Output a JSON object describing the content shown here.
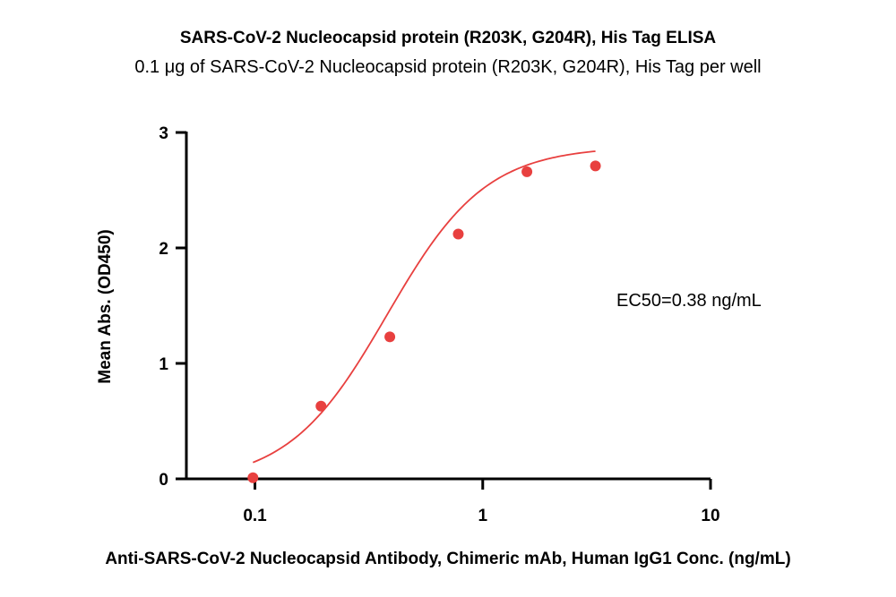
{
  "chart_data": {
    "type": "scatter",
    "title": "SARS-CoV-2 Nucleocapsid protein (R203K, G204R), His Tag ELISA",
    "subtitle": "0.1 μg of SARS-CoV-2 Nucleocapsid protein (R203K, G204R), His Tag per well",
    "xlabel": "Anti-SARS-CoV-2 Nucleocapsid Antibody, Chimeric mAb, Human IgG1 Conc. (ng/mL)",
    "ylabel": "Mean Abs. (OD450)",
    "x_scale": "log",
    "xlim": [
      0.05,
      10
    ],
    "ylim": [
      0,
      3
    ],
    "x_ticks": [
      0.1,
      1,
      10
    ],
    "x_tick_labels": [
      "0.1",
      "1",
      "10"
    ],
    "y_ticks": [
      0,
      1,
      2,
      3
    ],
    "y_tick_labels": [
      "0",
      "1",
      "2",
      "3"
    ],
    "grid": false,
    "colors": {
      "series": "#e8403f",
      "axis": "#000000"
    },
    "series": [
      {
        "points": [
          {
            "x": 0.098,
            "y": 0.01
          },
          {
            "x": 0.195,
            "y": 0.63
          },
          {
            "x": 0.391,
            "y": 1.23
          },
          {
            "x": 0.781,
            "y": 2.12
          },
          {
            "x": 1.563,
            "y": 2.66
          },
          {
            "x": 3.125,
            "y": 2.71
          }
        ],
        "fit": {
          "model": "4PL",
          "bottom": -0.04,
          "top": 2.88,
          "ec50": 0.38,
          "hill": 2.0,
          "x_range": [
            0.098,
            3.125
          ]
        }
      }
    ],
    "annotation": "EC50=0.38 ng/mL"
  }
}
